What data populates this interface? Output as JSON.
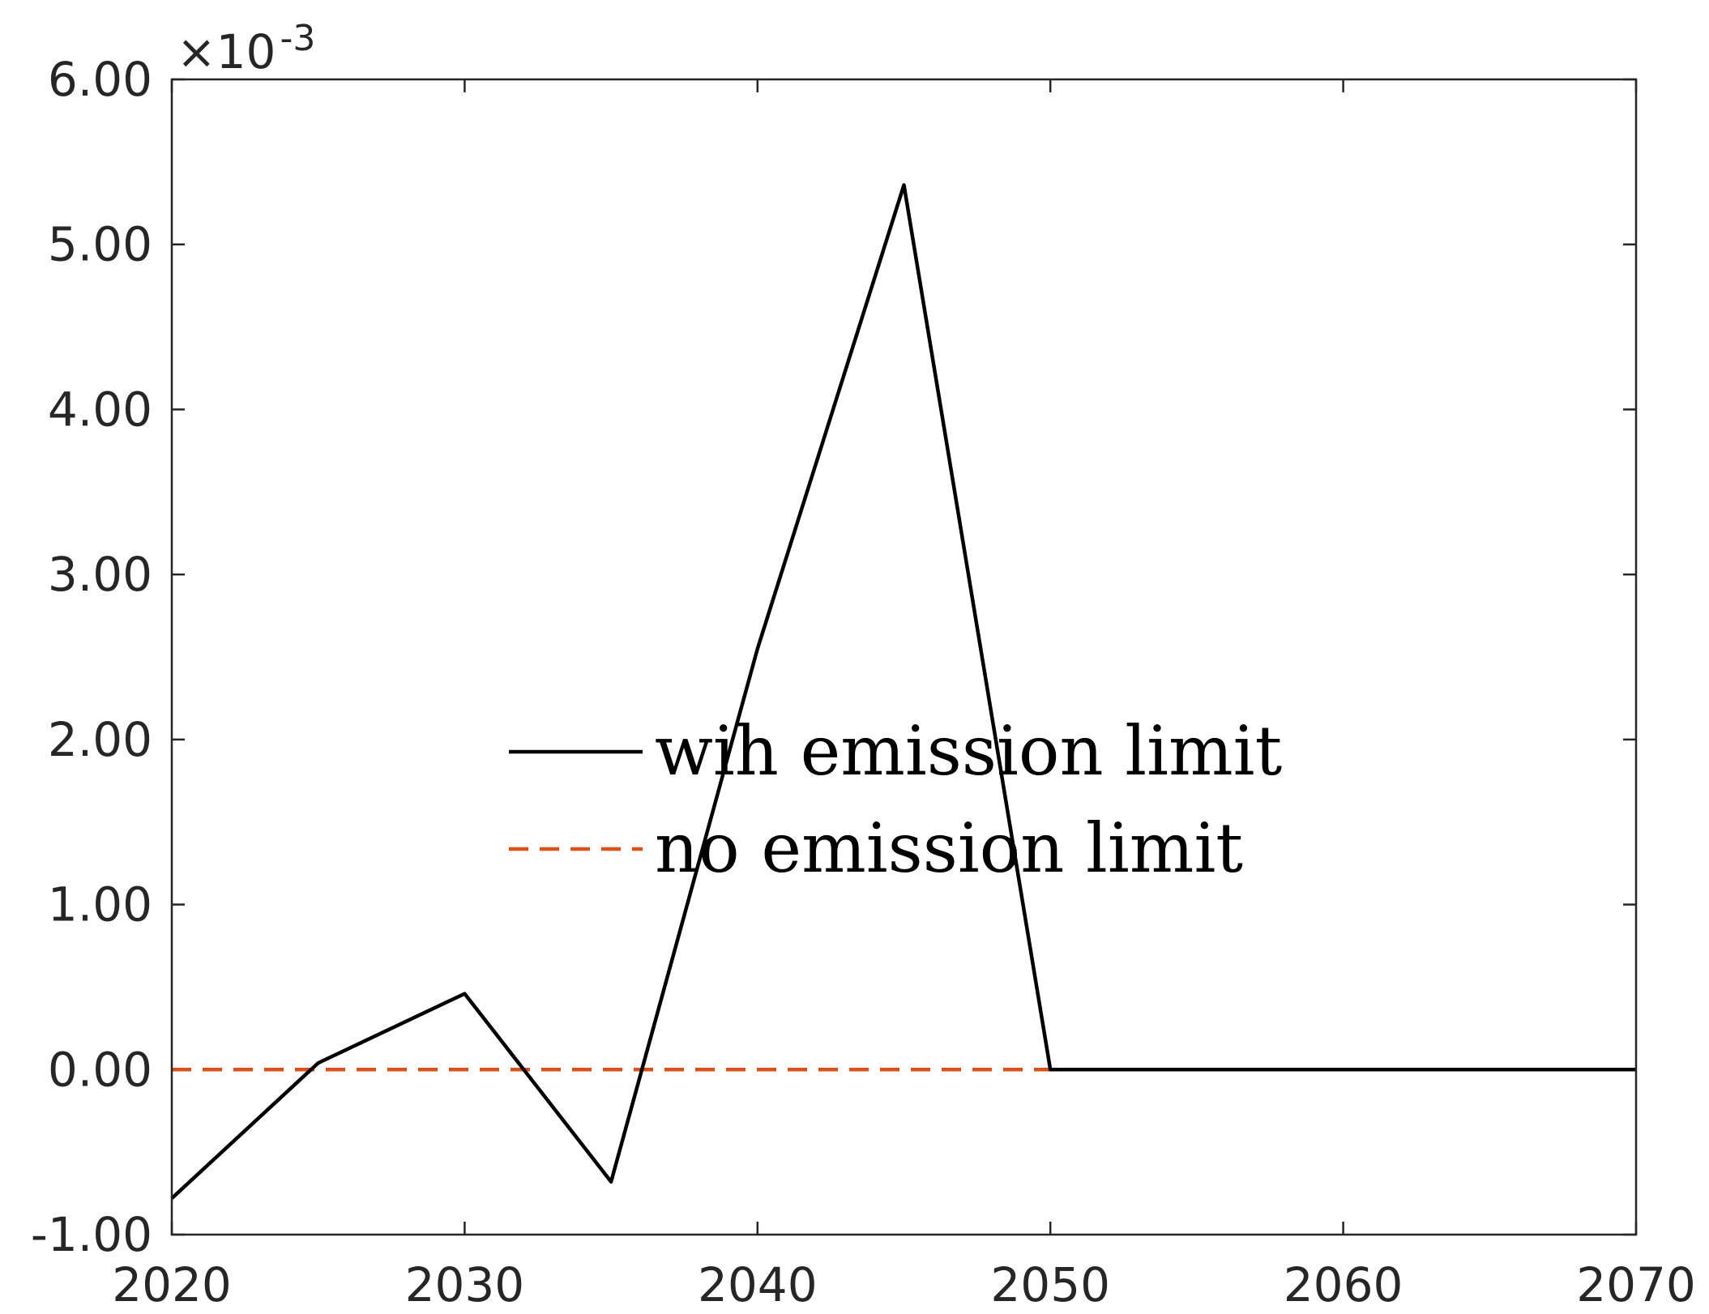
{
  "chart_data": {
    "type": "line",
    "x": [
      2020,
      2025,
      2030,
      2035,
      2040,
      2045,
      2050,
      2055,
      2060,
      2065,
      2070
    ],
    "series": [
      {
        "name": "wih emission limit",
        "values": [
          -0.00078,
          4e-05,
          0.00046,
          -0.00068,
          0.00255,
          0.00536,
          0.0,
          0.0,
          0.0,
          0.0,
          0.0
        ],
        "color": "#000000",
        "style": "solid"
      },
      {
        "name": "no emission limit",
        "values": [
          0,
          0,
          0,
          0,
          0,
          0,
          0,
          0,
          0,
          0,
          0
        ],
        "color": "#D95319",
        "style": "dashed"
      }
    ],
    "xlim": [
      2020,
      2070
    ],
    "ylim": [
      -0.001,
      0.006
    ],
    "x_ticks": [
      2020,
      2030,
      2040,
      2050,
      2060,
      2070
    ],
    "x_tick_labels": [
      "2020",
      "2030",
      "2040",
      "2050",
      "2060",
      "2070"
    ],
    "y_ticks": [
      -0.001,
      0.0,
      0.001,
      0.002,
      0.003,
      0.004,
      0.005,
      0.006
    ],
    "y_tick_labels": [
      "-1.00",
      "0.00",
      "1.00",
      "2.00",
      "3.00",
      "4.00",
      "5.00",
      "6.00"
    ],
    "y_exponent_label": {
      "base": "×10",
      "exponent": "-3"
    },
    "grid": false,
    "legend_position": "center"
  }
}
